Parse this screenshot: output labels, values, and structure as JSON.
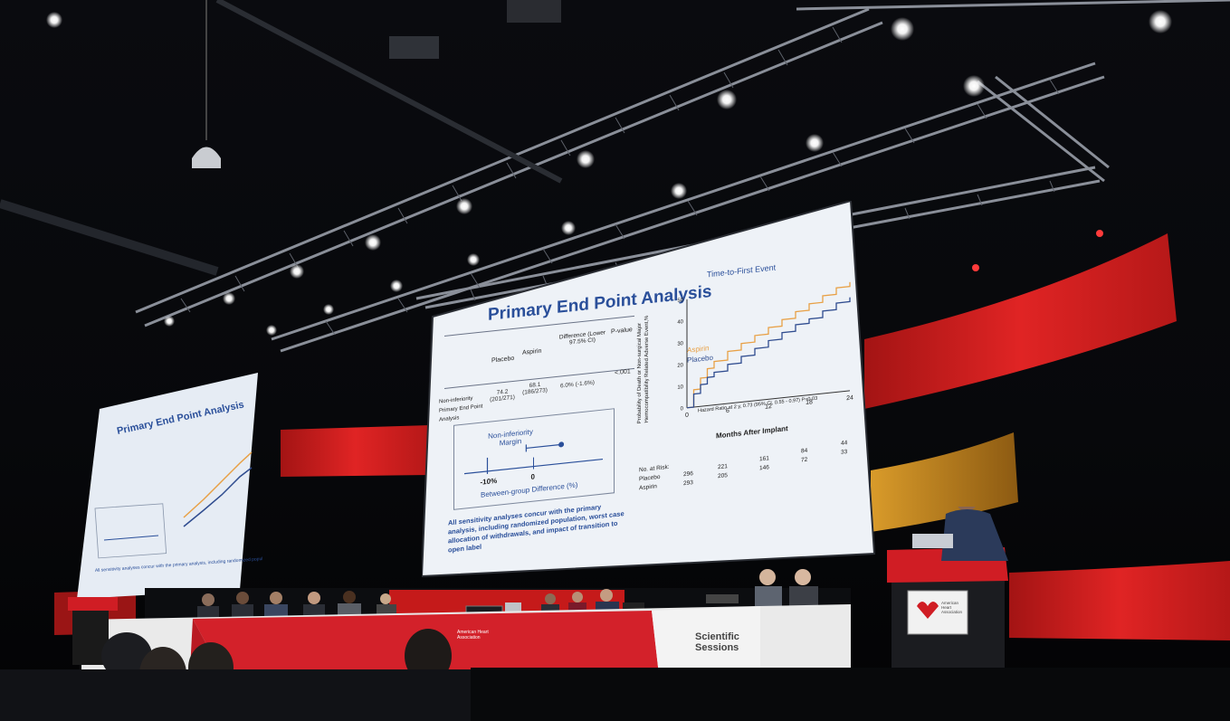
{
  "slide": {
    "title": "Primary End Point Analysis",
    "table": {
      "headers": [
        "Placebo",
        "Aspirin",
        "Difference (Lower 97.5% CI)",
        "P-value"
      ],
      "row_label": "Non-inferiority Primary End Point Analysis",
      "placebo_value": "74.2 (201/271)",
      "aspirin_value": "68.1 (186/273)",
      "difference": "6.0% (-1.6%)",
      "p_value": "<.001"
    },
    "forest": {
      "margin_label": "Non-inferiority Margin",
      "tick_minus10": "-10%",
      "tick_zero": "0",
      "axis_label": "Between-group Difference (%)",
      "margin_value": -10,
      "estimate": 6.0,
      "lower_ci": -1.6
    },
    "note": "All sensitivity analyses concur with the primary analysis, including randomized population, worst case allocation of withdrawals, and impact of transition to open label",
    "km": {
      "title": "Time-to-First Event",
      "ylabel": "Probability of Death or Non-surgical Major Hemocompatibility Related Adverse Event,%",
      "xlabel": "Months After Implant",
      "x_ticks": [
        "0",
        "6",
        "12",
        "18",
        "24"
      ],
      "y_ticks": [
        "0",
        "10",
        "20",
        "30",
        "40",
        "50"
      ],
      "legend": [
        "Aspirin",
        "Placebo"
      ],
      "hazard_text": "Hazard Ratio at 2 y, 0.73 (95% CI, 0.55 - 0.97) P=0.03",
      "at_risk_label": "No. at Risk:",
      "at_risk_rows": [
        {
          "name": "Placebo",
          "values": [
            "296",
            "221",
            "161",
            "84",
            "44"
          ]
        },
        {
          "name": "Aspirin",
          "values": [
            "293",
            "205",
            "146",
            "72",
            "33"
          ]
        }
      ]
    }
  },
  "chart_data": {
    "type": "line",
    "title": "Time-to-First Event",
    "xlabel": "Months After Implant",
    "ylabel": "Probability of Death or Non-surgical Major Hemocompatibility Related Adverse Event,%",
    "xlim": [
      0,
      24
    ],
    "ylim": [
      0,
      50
    ],
    "series": [
      {
        "name": "Aspirin",
        "color": "#e8a045",
        "x": [
          0,
          1,
          2,
          3,
          4,
          6,
          8,
          10,
          12,
          14,
          16,
          18,
          20,
          22,
          24
        ],
        "y": [
          0,
          8,
          13,
          17,
          20,
          24,
          27,
          30,
          33,
          36,
          39,
          42,
          45,
          48,
          50
        ]
      },
      {
        "name": "Placebo",
        "color": "#2f4c8f",
        "x": [
          0,
          1,
          2,
          3,
          4,
          6,
          8,
          10,
          12,
          14,
          16,
          18,
          20,
          22,
          24
        ],
        "y": [
          0,
          6,
          10,
          13,
          15,
          18,
          21,
          24,
          27,
          30,
          33,
          35,
          38,
          41,
          43
        ]
      }
    ]
  },
  "signage": {
    "logo_left": "American Heart Association",
    "logo_right": "Scientific Sessions",
    "podium_logo": "American Heart Association"
  },
  "colors": {
    "aha_red": "#d21f1f",
    "screen_bg": "#eef2f7",
    "title_blue": "#2a4f9a"
  }
}
